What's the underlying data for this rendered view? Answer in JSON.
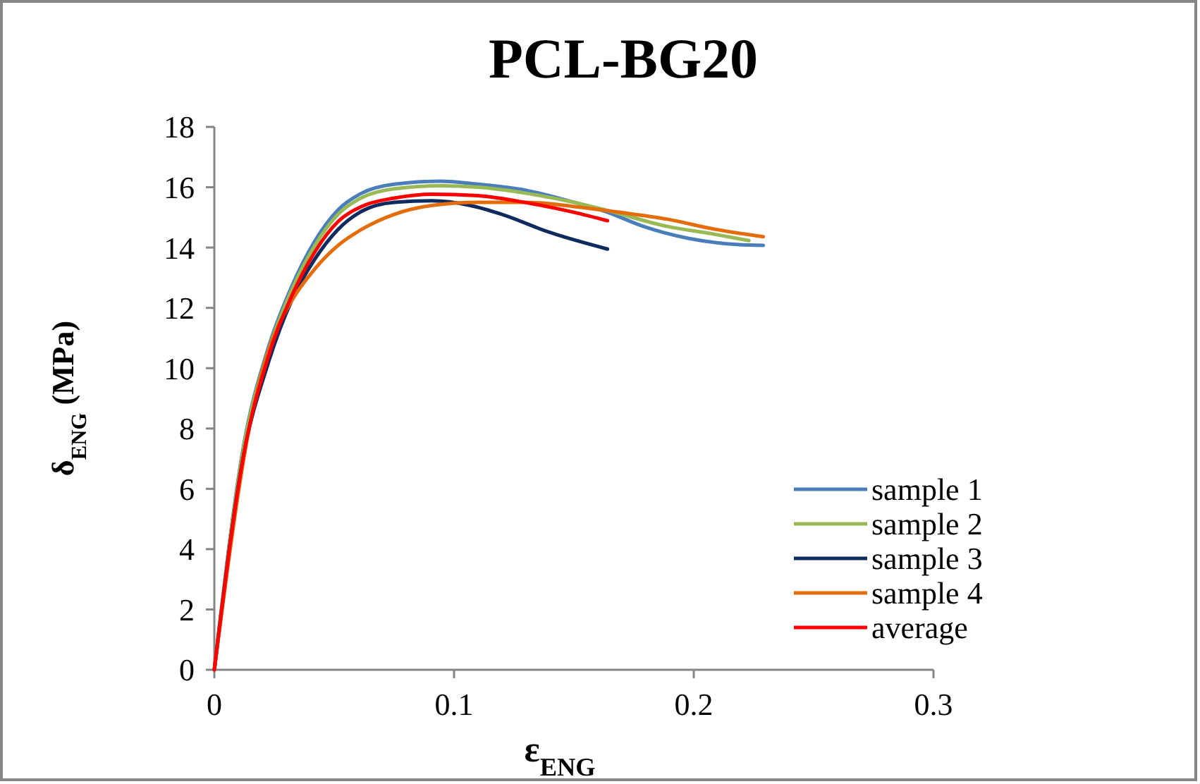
{
  "chart_data": {
    "type": "line",
    "title": "PCL-BG20",
    "xlabel": "ε$_{ENG}$",
    "ylabel": "δ$_{ENG}$ (MPa)",
    "xlim": [
      0,
      0.3
    ],
    "xticks": [
      0,
      0.1,
      0.2,
      0.3
    ],
    "ylim": [
      0,
      18
    ],
    "yticks": [
      0,
      2,
      4,
      6,
      8,
      10,
      12,
      14,
      16,
      18
    ],
    "grid": false,
    "legend": "right",
    "marker": "none",
    "line_style": "solid",
    "series": [
      {
        "name": "sample 1",
        "color": "#4a7ebb",
        "x": [
          0,
          0.0123,
          0.0222,
          0.032,
          0.0418,
          0.0516,
          0.0614,
          0.075,
          0.0945,
          0.11,
          0.13,
          0.15,
          0.163,
          0.179,
          0.198,
          0.218,
          0.229
        ],
        "values": [
          0,
          7.47,
          10.6,
          12.66,
          14.2,
          15.25,
          15.8,
          16.1,
          16.2,
          16.1,
          15.9,
          15.5,
          15.2,
          14.7,
          14.3,
          14.1,
          14.07
        ]
      },
      {
        "name": "sample 2",
        "color": "#98b954",
        "x": [
          0,
          0.0123,
          0.0222,
          0.032,
          0.0418,
          0.0516,
          0.0614,
          0.075,
          0.095,
          0.11,
          0.13,
          0.15,
          0.163,
          0.189,
          0.208,
          0.223
        ],
        "values": [
          0,
          7.4,
          10.5,
          12.55,
          14.05,
          15.1,
          15.65,
          15.95,
          16.05,
          16.0,
          15.8,
          15.5,
          15.25,
          14.7,
          14.45,
          14.23
        ]
      },
      {
        "name": "sample 3",
        "color": "#0f2a5e",
        "x": [
          0,
          0.0123,
          0.0222,
          0.032,
          0.0418,
          0.0516,
          0.0614,
          0.075,
          0.091,
          0.1065,
          0.12,
          0.14,
          0.164
        ],
        "values": [
          0,
          7.15,
          10.1,
          12.2,
          13.6,
          14.6,
          15.2,
          15.5,
          15.55,
          15.4,
          15.1,
          14.5,
          13.95
        ]
      },
      {
        "name": "sample 4",
        "color": "#e46c0a",
        "x": [
          0,
          0.0163,
          0.024,
          0.032,
          0.042,
          0.0516,
          0.0614,
          0.075,
          0.091,
          0.11,
          0.13,
          0.15,
          0.169,
          0.189,
          0.208,
          0.229
        ],
        "values": [
          0,
          8.7,
          10.9,
          12.2,
          13.3,
          14.07,
          14.6,
          15.1,
          15.4,
          15.5,
          15.5,
          15.36,
          15.17,
          14.94,
          14.62,
          14.36
        ]
      },
      {
        "name": "average",
        "color": "#ff0000",
        "x": [
          0,
          0.0123,
          0.0222,
          0.032,
          0.0418,
          0.0516,
          0.0614,
          0.075,
          0.091,
          0.11,
          0.13,
          0.15,
          0.164
        ],
        "values": [
          0,
          7.15,
          10.3,
          12.34,
          13.84,
          14.86,
          15.36,
          15.64,
          15.77,
          15.72,
          15.49,
          15.17,
          14.89
        ]
      }
    ]
  }
}
